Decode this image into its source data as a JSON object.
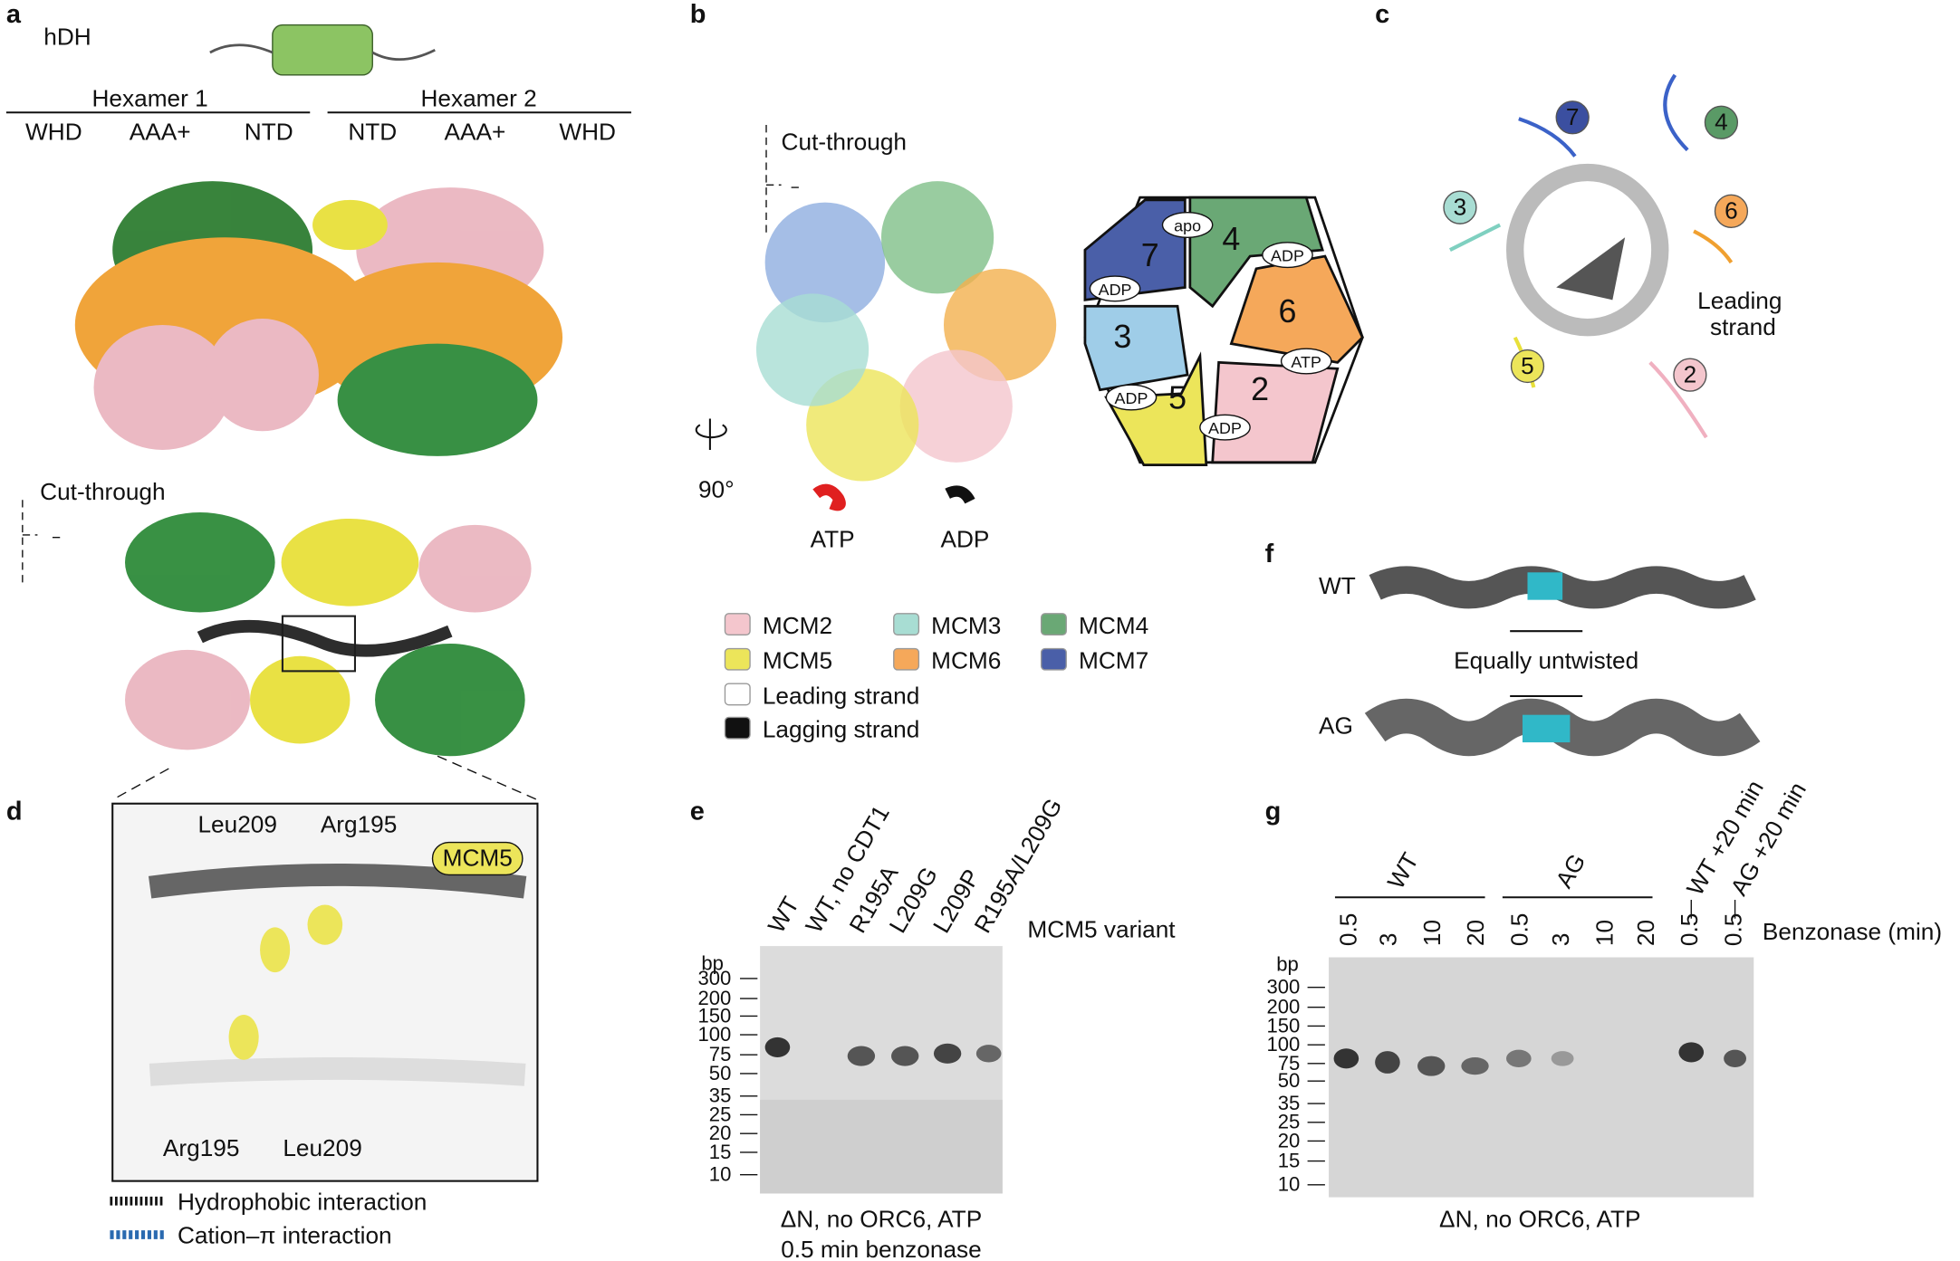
{
  "a": {
    "label": "a",
    "construct": "hDH",
    "hexamer1": "Hexamer 1",
    "hexamer2": "Hexamer 2",
    "domains": [
      "WHD",
      "AAA+",
      "NTD",
      "NTD",
      "AAA+",
      "WHD"
    ],
    "cut_through": "Cut-through"
  },
  "b": {
    "label": "b",
    "cut_through": "Cut-through",
    "rotation": "90°",
    "atp": "ATP",
    "adp": "ADP",
    "subunits": [
      "7",
      "4",
      "6",
      "2",
      "5",
      "3"
    ],
    "nucleotides": [
      "apo",
      "ADP",
      "ATP",
      "ADP",
      "ADP",
      "ADP"
    ],
    "legend": [
      "MCM2",
      "MCM3",
      "MCM4",
      "MCM5",
      "MCM6",
      "MCM7",
      "Leading strand",
      "Lagging strand"
    ]
  },
  "c": {
    "label": "c",
    "subunits": [
      "7",
      "4",
      "3",
      "6",
      "5",
      "2"
    ],
    "leading_strand": [
      "Leading",
      "strand"
    ]
  },
  "d": {
    "label": "d",
    "residues": [
      "Leu209",
      "Arg195",
      "Arg195",
      "Leu209"
    ],
    "mcm5": "MCM5",
    "legend": [
      "Hydrophobic interaction",
      "Cation–π interaction"
    ]
  },
  "e": {
    "label": "e",
    "lanes": [
      "WT",
      "WT, no CDT1",
      "R195A",
      "L209G",
      "L209P",
      "R195A/L209G"
    ],
    "variant": "MCM5 variant",
    "bp": "bp",
    "ladder": [
      "300",
      "200",
      "150",
      "100",
      "75",
      "50",
      "35",
      "25",
      "20",
      "15",
      "10"
    ],
    "caption": [
      "ΔN, no ORC6, ATP",
      "0.5 min benzonase"
    ]
  },
  "f": {
    "label": "f",
    "wt": "WT",
    "untwisted": "Equally untwisted",
    "ag": "AG"
  },
  "g": {
    "label": "g",
    "groups": [
      "WT",
      "AG"
    ],
    "lanes": [
      "0.5",
      "3",
      "10",
      "20",
      "0.5",
      "3",
      "10",
      "20",
      "0.5",
      "0.5"
    ],
    "chase": [
      "WT +20 min",
      "AG +20 min"
    ],
    "benzonase": "Benzonase (min)",
    "bp": "bp",
    "ladder": [
      "300",
      "200",
      "150",
      "100",
      "75",
      "50",
      "35",
      "25",
      "20",
      "15",
      "10"
    ],
    "caption": "ΔN, no ORC6, ATP"
  }
}
